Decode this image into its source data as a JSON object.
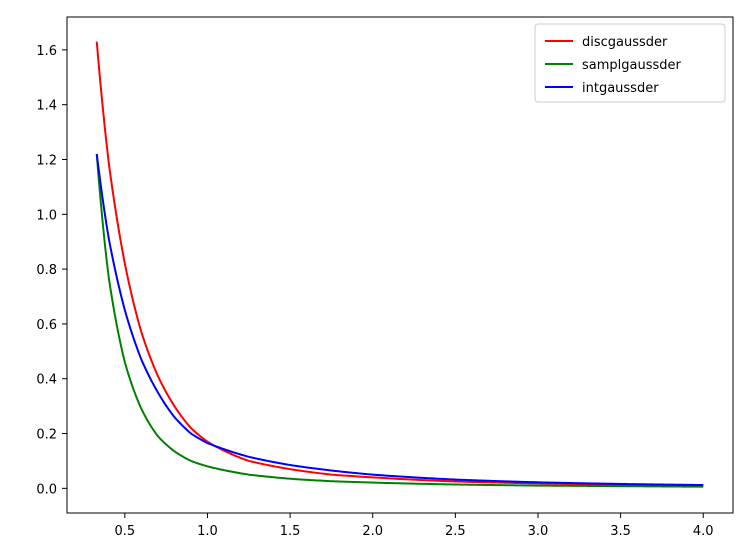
{
  "chart_data": {
    "type": "line",
    "title": "",
    "xlabel": "",
    "ylabel": "",
    "xlim": [
      0.15,
      4.18
    ],
    "ylim": [
      -0.09,
      1.72
    ],
    "xticks": [
      0.5,
      1.0,
      1.5,
      2.0,
      2.5,
      3.0,
      3.5,
      4.0
    ],
    "xtick_labels": [
      "0.5",
      "1.0",
      "1.5",
      "2.0",
      "2.5",
      "3.0",
      "3.5",
      "4.0"
    ],
    "yticks": [
      0.0,
      0.2,
      0.4,
      0.6,
      0.8,
      1.0,
      1.2,
      1.4,
      1.6
    ],
    "ytick_labels": [
      "0.0",
      "0.2",
      "0.4",
      "0.6",
      "0.8",
      "1.0",
      "1.2",
      "1.4",
      "1.6"
    ],
    "grid": false,
    "legend_position": "top-right",
    "x": [
      0.33,
      0.4,
      0.5,
      0.6,
      0.7,
      0.8,
      0.9,
      1.0,
      1.25,
      1.5,
      1.75,
      2.0,
      2.5,
      3.0,
      3.5,
      4.0
    ],
    "series": [
      {
        "name": "discgaussder",
        "color": "#ff0000",
        "values": [
          1.63,
          1.2,
          0.82,
          0.57,
          0.41,
          0.3,
          0.22,
          0.17,
          0.1,
          0.07,
          0.05,
          0.04,
          0.025,
          0.018,
          0.013,
          0.01
        ]
      },
      {
        "name": "samplgaussder",
        "color": "#008000",
        "values": [
          1.22,
          0.78,
          0.46,
          0.29,
          0.19,
          0.135,
          0.1,
          0.08,
          0.05,
          0.035,
          0.026,
          0.021,
          0.014,
          0.01,
          0.008,
          0.006
        ]
      },
      {
        "name": "intgaussder",
        "color": "#0000ff",
        "values": [
          1.22,
          0.92,
          0.65,
          0.47,
          0.35,
          0.26,
          0.2,
          0.165,
          0.115,
          0.085,
          0.065,
          0.05,
          0.032,
          0.022,
          0.016,
          0.012
        ]
      }
    ]
  }
}
